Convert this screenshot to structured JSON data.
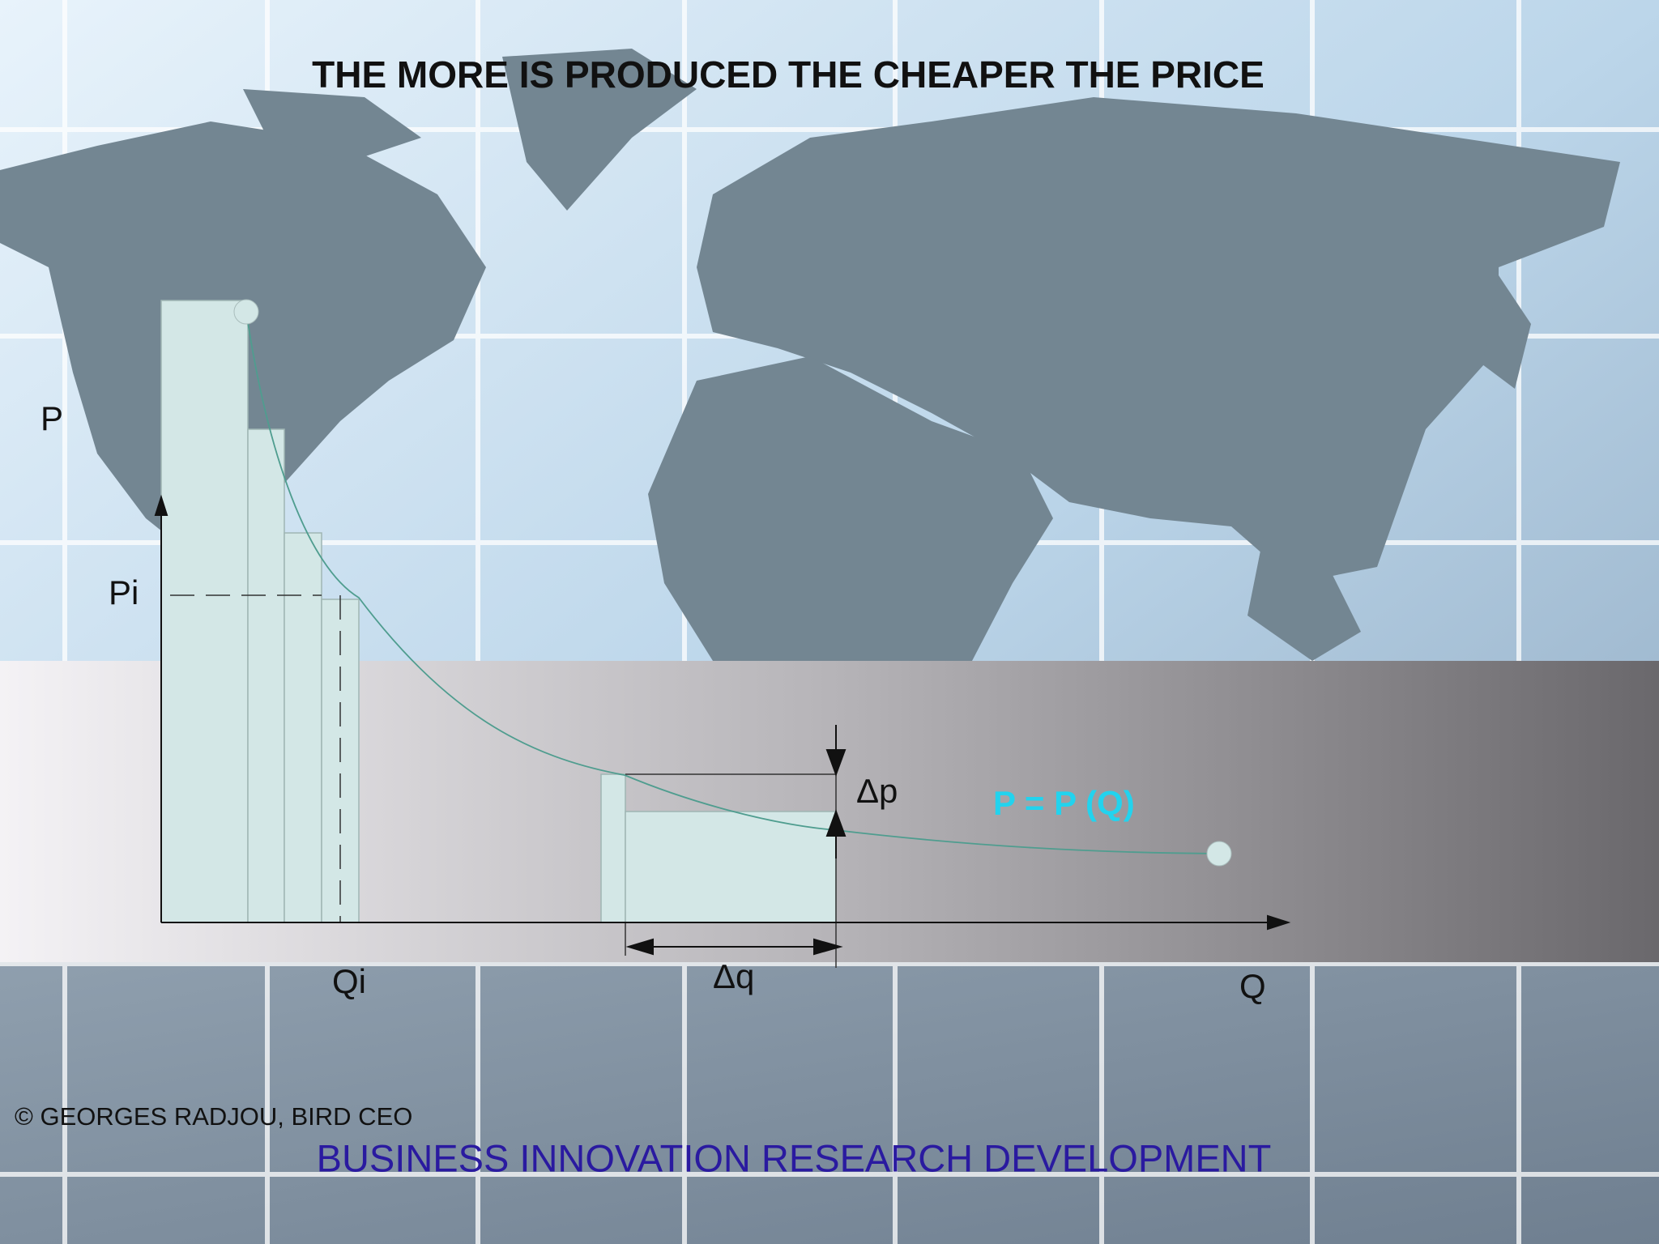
{
  "title": "THE MORE IS PRODUCED THE CHEAPER THE PRICE",
  "labels": {
    "p_axis": "P",
    "pi": "Pi",
    "qi": "Qi",
    "delta_p": "Δp",
    "delta_q": "Δq",
    "q_axis": "Q",
    "curve": "P = P (Q)"
  },
  "footer": {
    "copyright": "© GEORGES RADJOU, BIRD CEO",
    "tagline": "BUSINESS INNOVATION RESEARCH DEVELOPMENT"
  }
}
